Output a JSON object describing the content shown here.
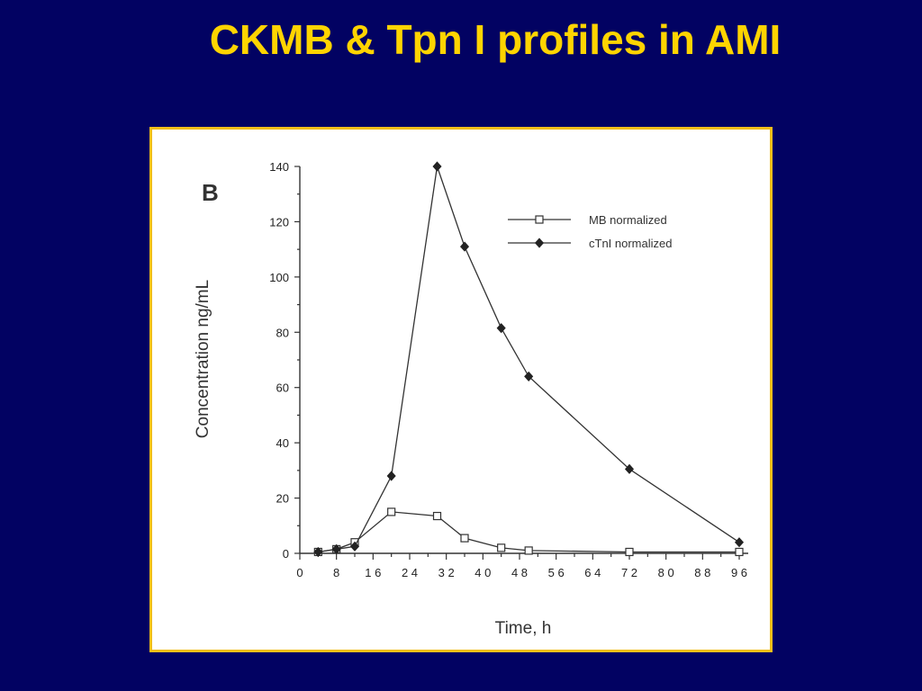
{
  "slide": {
    "title": "CKMB & Tpn I profiles in AMI",
    "background_color": "#020262",
    "title_color": "#ffd400",
    "frame_color": "#f2bf1a"
  },
  "chart_data": {
    "type": "line",
    "panel_label": "B",
    "title": "",
    "xlabel": "Time,  h",
    "ylabel": "Concentration  ng/mL",
    "xlim": [
      0,
      96
    ],
    "ylim": [
      0,
      140
    ],
    "x_ticks": [
      0,
      8,
      16,
      24,
      32,
      40,
      48,
      56,
      64,
      72,
      80,
      88,
      96
    ],
    "x_tick_labels": [
      "0",
      "8",
      "1 6",
      "2 4",
      "3 2",
      "4 0",
      "4 8",
      "5 6",
      "6 4",
      "7 2",
      "8 0",
      "8 8",
      "9 6"
    ],
    "y_ticks": [
      0,
      20,
      40,
      60,
      80,
      100,
      120,
      140
    ],
    "grid": false,
    "legend_position": "top-right",
    "series": [
      {
        "name": "MB normalized",
        "marker": "open-square",
        "x": [
          4,
          8,
          12,
          20,
          30,
          36,
          44,
          50,
          72,
          96
        ],
        "y": [
          0.5,
          1.5,
          4,
          15,
          13.5,
          5.5,
          2,
          1,
          0.5,
          0.5
        ]
      },
      {
        "name": "cTnI normalized",
        "marker": "filled-diamond",
        "x": [
          4,
          8,
          12,
          20,
          30,
          36,
          44,
          50,
          72,
          96
        ],
        "y": [
          0.5,
          1.5,
          2.5,
          28,
          140,
          111,
          81.5,
          64,
          30.5,
          4
        ]
      }
    ]
  }
}
